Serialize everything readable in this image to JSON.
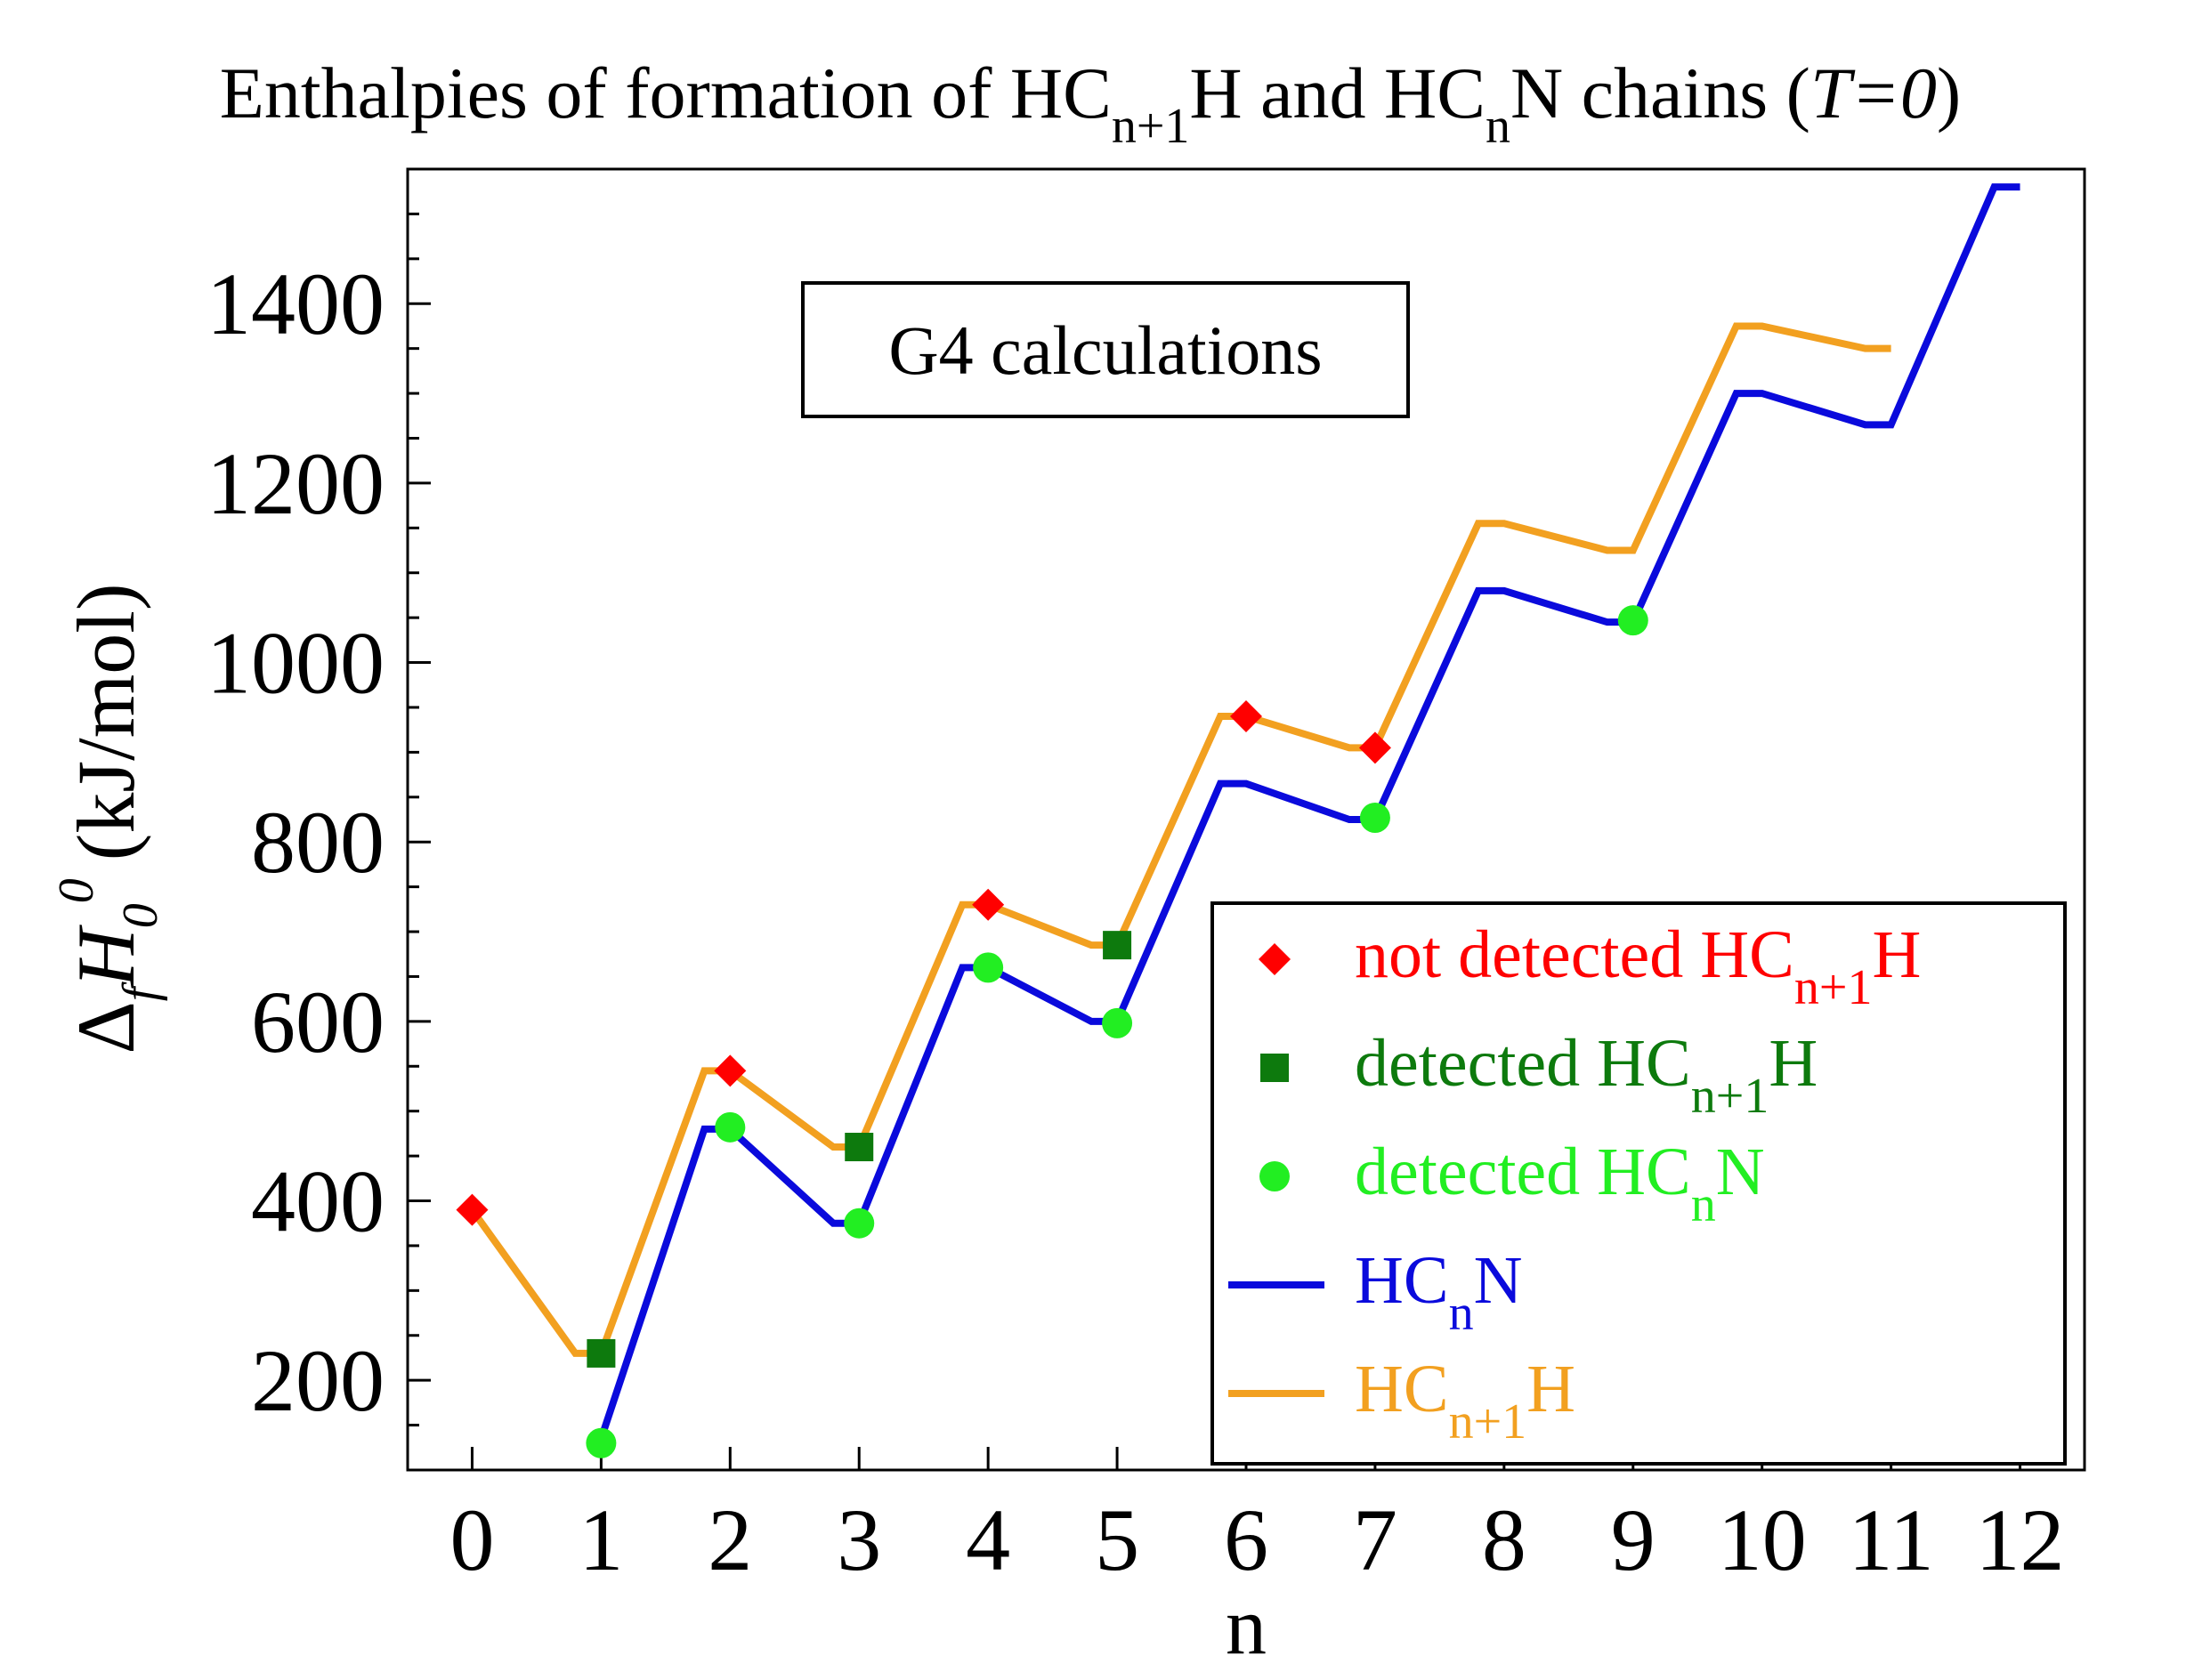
{
  "chart_data": {
    "type": "line",
    "title": {
      "prefix": "Enthalpies of formation of HC",
      "sub1": "n+1",
      "mid1": "H and HC",
      "sub2": "n",
      "mid2": "N chains (",
      "italic": "T=0",
      "suffix": ")"
    },
    "xlabel": "n",
    "ylabel": {
      "delta": "Δ",
      "sub_f": "f",
      "H": "H",
      "sub_0": "0",
      "sup_0": "0",
      "units": "(kJ/mol)"
    },
    "xlim": [
      -0.5,
      12.5
    ],
    "ylim": [
      100,
      1550
    ],
    "xticks": [
      "0",
      "1",
      "2",
      "3",
      "4",
      "5",
      "6",
      "7",
      "8",
      "9",
      "10",
      "11",
      "12"
    ],
    "yticks": [
      "200",
      "400",
      "600",
      "800",
      "1000",
      "1200",
      "1400"
    ],
    "annotation": "G4 calculations",
    "series": [
      {
        "name": "HCnN",
        "kind": "line",
        "color": "#0a0adc",
        "x": [
          1,
          2,
          3,
          4,
          5,
          6,
          7,
          8,
          9,
          10,
          11,
          12
        ],
        "y": [
          135,
          480,
          375,
          660,
          600,
          865,
          825,
          1080,
          1045,
          1300,
          1265,
          1530
        ]
      },
      {
        "name": "HCn+1H",
        "kind": "line",
        "color": "#f2a020",
        "x": [
          0,
          1,
          2,
          3,
          4,
          5,
          6,
          7,
          8,
          9,
          10,
          11
        ],
        "y": [
          390,
          230,
          545,
          460,
          730,
          685,
          940,
          905,
          1155,
          1125,
          1375,
          1350
        ]
      },
      {
        "name": "not detected HCn+1H",
        "kind": "points",
        "marker": "diamond",
        "color": "#ff0000",
        "x": [
          0,
          2,
          4,
          6,
          7
        ],
        "y": [
          390,
          545,
          730,
          940,
          905
        ]
      },
      {
        "name": "detected HCn+1H",
        "kind": "points",
        "marker": "square",
        "color": "#0d7a0d",
        "x": [
          1,
          3,
          5
        ],
        "y": [
          230,
          460,
          685
        ]
      },
      {
        "name": "detected HCnN",
        "kind": "points",
        "marker": "circle",
        "color": "#22ee22",
        "x": [
          1,
          2,
          3,
          4,
          5,
          7,
          9
        ],
        "y": [
          130,
          482,
          375,
          660,
          598,
          827,
          1047
        ]
      }
    ],
    "legend": {
      "position": "bottom-right",
      "entries": [
        {
          "marker": "diamond",
          "color": "#ff0000",
          "text_color": "#ff0000",
          "label": "not detected HC",
          "sub": "n+1",
          "tail": "H"
        },
        {
          "marker": "square",
          "color": "#0d7a0d",
          "text_color": "#0d7a0d",
          "label": "detected HC",
          "sub": "n+1",
          "tail": "H"
        },
        {
          "marker": "circle",
          "color": "#22ee22",
          "text_color": "#22ee22",
          "label": "detected HC",
          "sub": "n",
          "tail": "N"
        },
        {
          "marker": "line",
          "color": "#0a0adc",
          "text_color": "#0a0adc",
          "label": "HC",
          "sub": "n",
          "tail": "N"
        },
        {
          "marker": "line",
          "color": "#f2a020",
          "text_color": "#f2a020",
          "label": "HC",
          "sub": "n+1",
          "tail": "H"
        }
      ]
    }
  }
}
